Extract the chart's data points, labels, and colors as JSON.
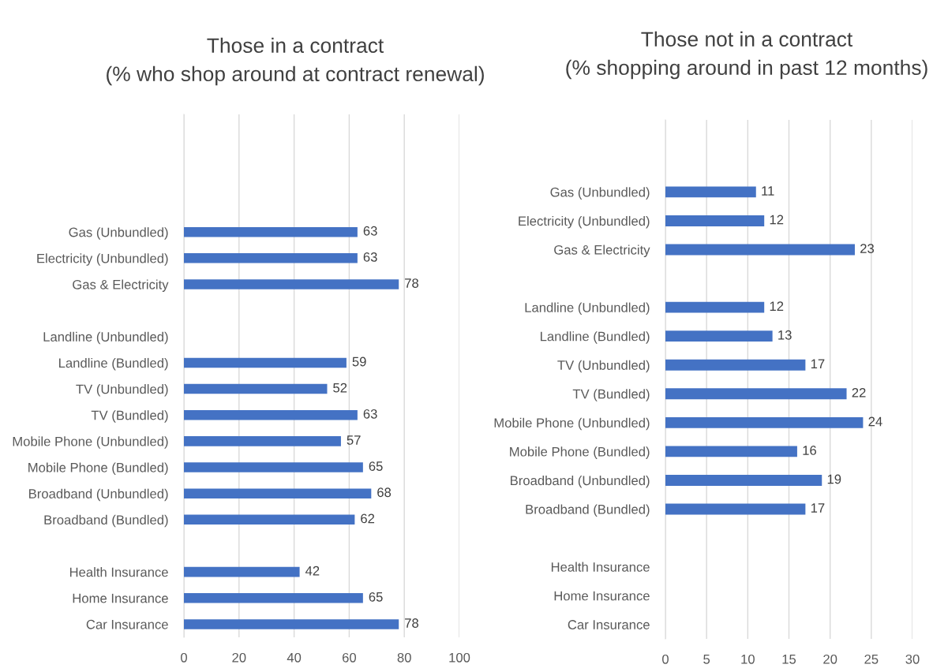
{
  "chart_data": [
    {
      "type": "bar",
      "orientation": "horizontal",
      "title": "Those in a contract\n(% who shop around at contract renewal)",
      "categories": [
        null,
        null,
        null,
        null,
        "Gas (Unbundled)",
        "Electricity (Unbundled)",
        "Gas & Electricity",
        null,
        "Landline (Unbundled)",
        "Landline (Bundled)",
        "TV (Unbundled)",
        "TV (Bundled)",
        "Mobile Phone (Unbundled)",
        "Mobile Phone (Bundled)",
        "Broadband (Unbundled)",
        "Broadband (Bundled)",
        null,
        "Health Insurance",
        "Home Insurance",
        "Car Insurance"
      ],
      "values": [
        null,
        null,
        null,
        null,
        63,
        63,
        78,
        null,
        null,
        59,
        52,
        63,
        57,
        65,
        68,
        62,
        null,
        42,
        65,
        78
      ],
      "color": "#4472c4",
      "xlim": [
        0,
        100
      ],
      "xticks": [
        0,
        20,
        40,
        60,
        80,
        100
      ],
      "grid": "x",
      "data_labels": true
    },
    {
      "type": "bar",
      "orientation": "horizontal",
      "title": "Those not in a contract\n(% shopping around in past 12 months)",
      "categories": [
        null,
        null,
        "Gas (Unbundled)",
        "Electricity (Unbundled)",
        "Gas & Electricity",
        null,
        "Landline (Unbundled)",
        "Landline (Bundled)",
        "TV (Unbundled)",
        "TV (Bundled)",
        "Mobile Phone (Unbundled)",
        "Mobile Phone (Bundled)",
        "Broadband (Unbundled)",
        "Broadband (Bundled)",
        null,
        "Health Insurance",
        "Home Insurance",
        "Car Insurance"
      ],
      "values": [
        null,
        null,
        11,
        12,
        23,
        null,
        12,
        13,
        17,
        22,
        24,
        16,
        19,
        17,
        null,
        null,
        null,
        null
      ],
      "color": "#4472c4",
      "xlim": [
        0,
        30
      ],
      "xticks": [
        0,
        5,
        10,
        15,
        20,
        25,
        30
      ],
      "grid": "x",
      "data_labels": true
    }
  ]
}
